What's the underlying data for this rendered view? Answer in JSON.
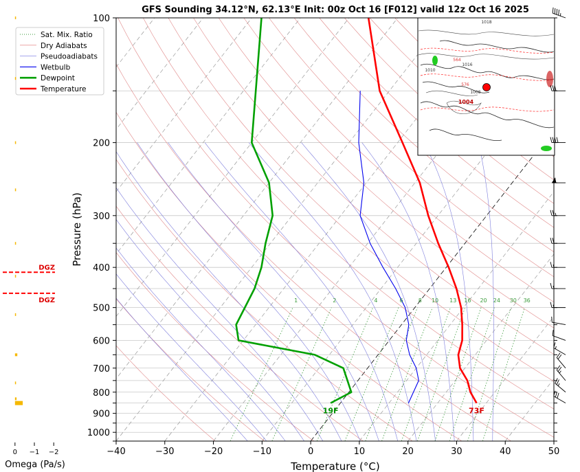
{
  "chart_data": {
    "type": "line",
    "title": "GFS Sounding 34.12°N, 62.13°E Init: 00z Oct 16 [F012] valid 12z Oct 16 2025",
    "xlabel": "Temperature (°C)",
    "ylabel": "Pressure (hPa)",
    "xlim": [
      -40,
      50
    ],
    "ylim": [
      1050,
      100
    ],
    "y_scale": "log",
    "grid": true,
    "legend_position": "top-left",
    "x_ticks": [
      -40,
      -30,
      -20,
      -10,
      0,
      10,
      20,
      30,
      40,
      50
    ],
    "x_tick_labels": [
      "−40",
      "−30",
      "−20",
      "−10",
      "0",
      "10",
      "20",
      "30",
      "40",
      "50"
    ],
    "y_ticks": [
      100,
      200,
      300,
      400,
      500,
      600,
      700,
      800,
      900,
      1000
    ],
    "y_tick_labels": [
      "100",
      "200",
      "300",
      "400",
      "500",
      "600",
      "700",
      "800",
      "900",
      "1000"
    ],
    "legend": [
      {
        "name": "Sat. Mix. Ratio",
        "color": "#3a9a3a",
        "style": "dotted"
      },
      {
        "name": "Dry Adiabats",
        "color": "#e07070",
        "style": "solid-thin"
      },
      {
        "name": "Pseudoadiabats",
        "color": "#7070e0",
        "style": "solid-thin"
      },
      {
        "name": "Wetbulb",
        "color": "#0000ee",
        "style": "solid"
      },
      {
        "name": "Dewpoint",
        "color": "#00a000",
        "style": "thick"
      },
      {
        "name": "Temperature",
        "color": "#ff0000",
        "style": "thick"
      }
    ],
    "series": [
      {
        "name": "Temperature",
        "color": "#ff0000",
        "points": [
          [
            850,
            28
          ],
          [
            800,
            25
          ],
          [
            750,
            22.5
          ],
          [
            700,
            19
          ],
          [
            650,
            16.5
          ],
          [
            600,
            15
          ],
          [
            550,
            12.5
          ],
          [
            500,
            9.5
          ],
          [
            450,
            5.5
          ],
          [
            400,
            0.5
          ],
          [
            350,
            -5.5
          ],
          [
            300,
            -12
          ],
          [
            250,
            -19
          ],
          [
            200,
            -29
          ],
          [
            150,
            -42
          ],
          [
            100,
            -56
          ]
        ]
      },
      {
        "name": "Dewpoint",
        "color": "#00a000",
        "points": [
          [
            850,
            -2
          ],
          [
            800,
            0.5
          ],
          [
            700,
            -5
          ],
          [
            650,
            -13
          ],
          [
            600,
            -31
          ],
          [
            550,
            -34
          ],
          [
            450,
            -36
          ],
          [
            400,
            -38
          ],
          [
            350,
            -41
          ],
          [
            300,
            -44
          ],
          [
            250,
            -50
          ],
          [
            200,
            -60
          ],
          [
            100,
            -78
          ]
        ]
      },
      {
        "name": "Wetbulb",
        "color": "#0000ee",
        "points": [
          [
            850,
            14
          ],
          [
            750,
            12.5
          ],
          [
            700,
            10
          ],
          [
            650,
            6.5
          ],
          [
            600,
            3.5
          ],
          [
            550,
            1.5
          ],
          [
            500,
            -2
          ],
          [
            450,
            -7
          ],
          [
            400,
            -13
          ],
          [
            350,
            -19.5
          ],
          [
            300,
            -26
          ],
          [
            250,
            -30.5
          ],
          [
            200,
            -38
          ],
          [
            150,
            -46
          ]
        ]
      }
    ],
    "annotations": {
      "surface_temperature": "73F",
      "surface_dewpoint": "19F",
      "mixing_ratio_labels": [
        "1",
        "2",
        "4",
        "6",
        "8",
        "10",
        "13",
        "16",
        "20",
        "24",
        "30",
        "36"
      ],
      "mixing_ratio_values": [
        1,
        2,
        4,
        6,
        8,
        10,
        13,
        16,
        20,
        24,
        30,
        36
      ],
      "mixing_ratio_label_pressure": 482
    },
    "omega_panel": {
      "xlabel": "Omega (Pa/s)",
      "x_ticks": [
        "0",
        "−1",
        "−2"
      ],
      "x_tick_values": [
        0,
        -1,
        -2
      ],
      "xlim": [
        0.1,
        -2.1
      ],
      "dgz_label": "DGZ",
      "dgz_bounds_hpa": [
        411,
        462
      ],
      "bar_color": "#f5b800",
      "bars": [
        {
          "p": 850,
          "omega": -0.4
        },
        {
          "p": 830,
          "omega": -0.08
        },
        {
          "p": 760,
          "omega": -0.04
        },
        {
          "p": 650,
          "omega": -0.12
        },
        {
          "p": 520,
          "omega": -0.01
        },
        {
          "p": 420,
          "omega": -0.02
        },
        {
          "p": 350,
          "omega": -0.04
        },
        {
          "p": 260,
          "omega": -0.01
        },
        {
          "p": 200,
          "omega": -0.01
        },
        {
          "p": 140,
          "omega": -0.01
        },
        {
          "p": 100,
          "omega": -0.01
        }
      ]
    },
    "wind_barbs": {
      "speeds_kt": [
        30,
        25,
        25,
        20,
        15,
        10,
        10,
        15,
        15,
        15,
        20,
        25,
        55,
        40,
        30,
        45
      ],
      "directions_deg": [
        300,
        310,
        320,
        320,
        300,
        290,
        280,
        270,
        270,
        270,
        270,
        270,
        270,
        270,
        270,
        290
      ],
      "levels_hpa": [
        850,
        800,
        750,
        700,
        650,
        600,
        550,
        500,
        450,
        400,
        350,
        300,
        250,
        200,
        150,
        100
      ]
    },
    "inset_map": {
      "description_labels": [
        "1018",
        "1016",
        "1010",
        "1008",
        "1004",
        "564",
        "576"
      ],
      "marker_color": "#ff0000"
    }
  }
}
